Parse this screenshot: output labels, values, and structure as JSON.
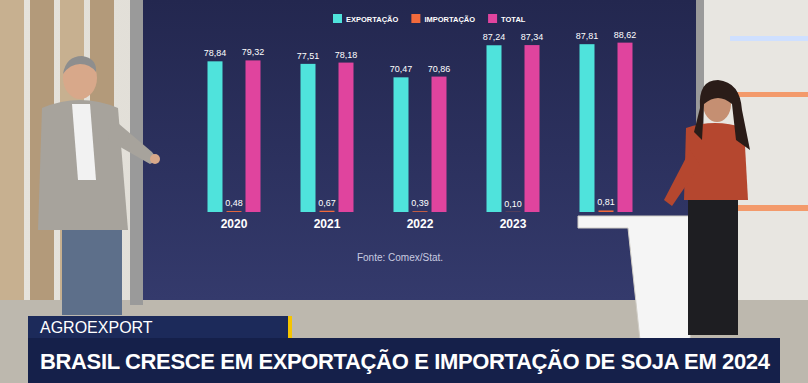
{
  "chart_data": {
    "type": "bar",
    "title": "BRASIL CRESCE EM EXPORTAÇÃO E IMPORTAÇÃO DE SOJA EM 2024",
    "subtitle": "AGROEXPORT",
    "annotations": [
      "Fonte: Comex/Stat."
    ],
    "categories": [
      "2020",
      "2021",
      "2022",
      "2023",
      null
    ],
    "series": [
      {
        "name": "EXPORTAÇÃO",
        "color": "#4fe3dc",
        "values": [
          78.84,
          77.51,
          70.47,
          87.24,
          87.81
        ],
        "value_labels": [
          "78,84",
          "77,51",
          "70,47",
          "87,24",
          "87,81"
        ]
      },
      {
        "name": "IMPORTAÇÃO",
        "color": "#f26a3c",
        "values": [
          0.48,
          0.67,
          0.39,
          0.1,
          0.81
        ],
        "value_labels": [
          "0,48",
          "0,67",
          "0,39",
          "0,10",
          "0,81"
        ]
      },
      {
        "name": "TOTAL",
        "color": "#e0449e",
        "values": [
          79.32,
          78.18,
          70.86,
          87.34,
          88.62
        ],
        "value_labels": [
          "79,32",
          "78,18",
          "70,86",
          "87,34",
          "88,62"
        ]
      }
    ],
    "ylim": [
      0,
      90
    ],
    "tick_labels": "x",
    "data_labels": true,
    "legend": "top",
    "grid": false
  }
}
